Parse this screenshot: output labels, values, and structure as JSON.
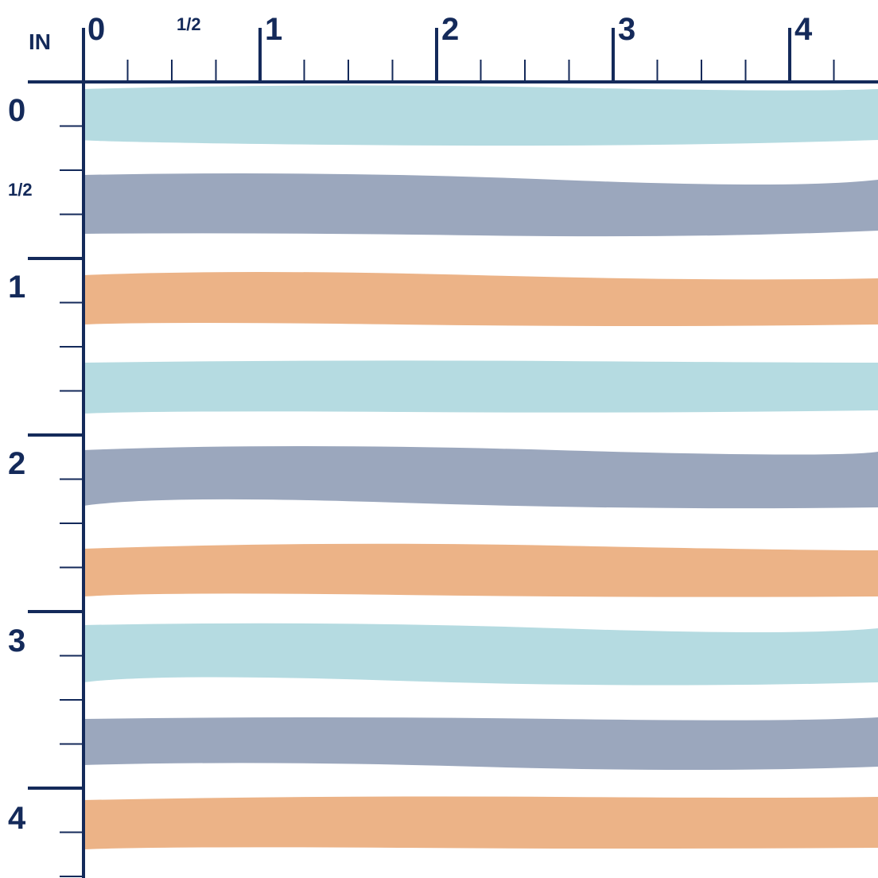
{
  "unit": "IN",
  "top_ruler": {
    "labels": [
      "0",
      "1/2",
      "1",
      "2",
      "3",
      "4"
    ]
  },
  "left_ruler": {
    "labels": [
      "0",
      "1/2",
      "1",
      "2",
      "3",
      "4"
    ]
  }
}
